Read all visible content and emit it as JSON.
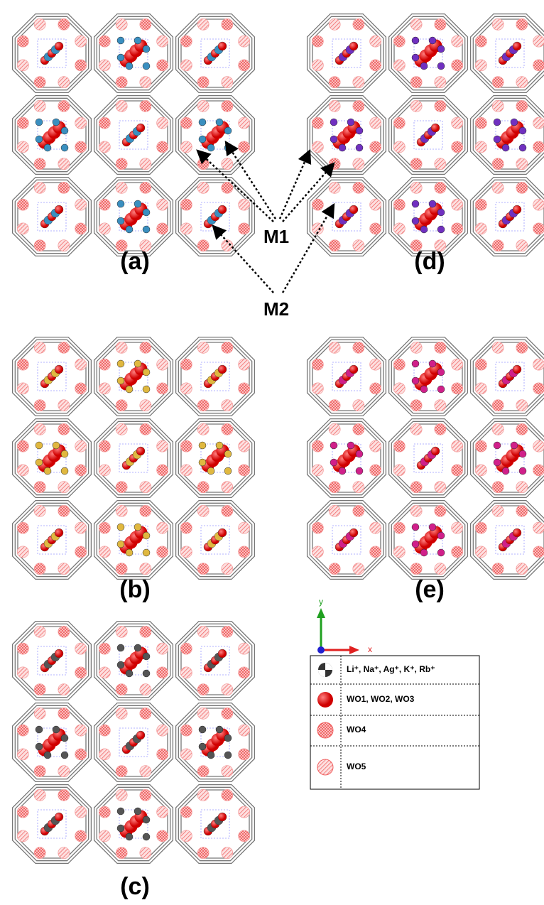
{
  "panels": [
    {
      "label": "(a)"
    },
    {
      "label": "(b)"
    },
    {
      "label": "(c)"
    },
    {
      "label": "(d)"
    },
    {
      "label": "(e)"
    }
  ],
  "annotations": {
    "m1": "M1",
    "m2": "M2"
  },
  "axes": {
    "y": "y",
    "x": "x"
  },
  "legend": {
    "items": [
      "Li⁺, Na⁺, Ag⁺, K⁺, Rb⁺",
      "WO1, WO2, WO3",
      "WO4",
      "WO5"
    ]
  }
}
